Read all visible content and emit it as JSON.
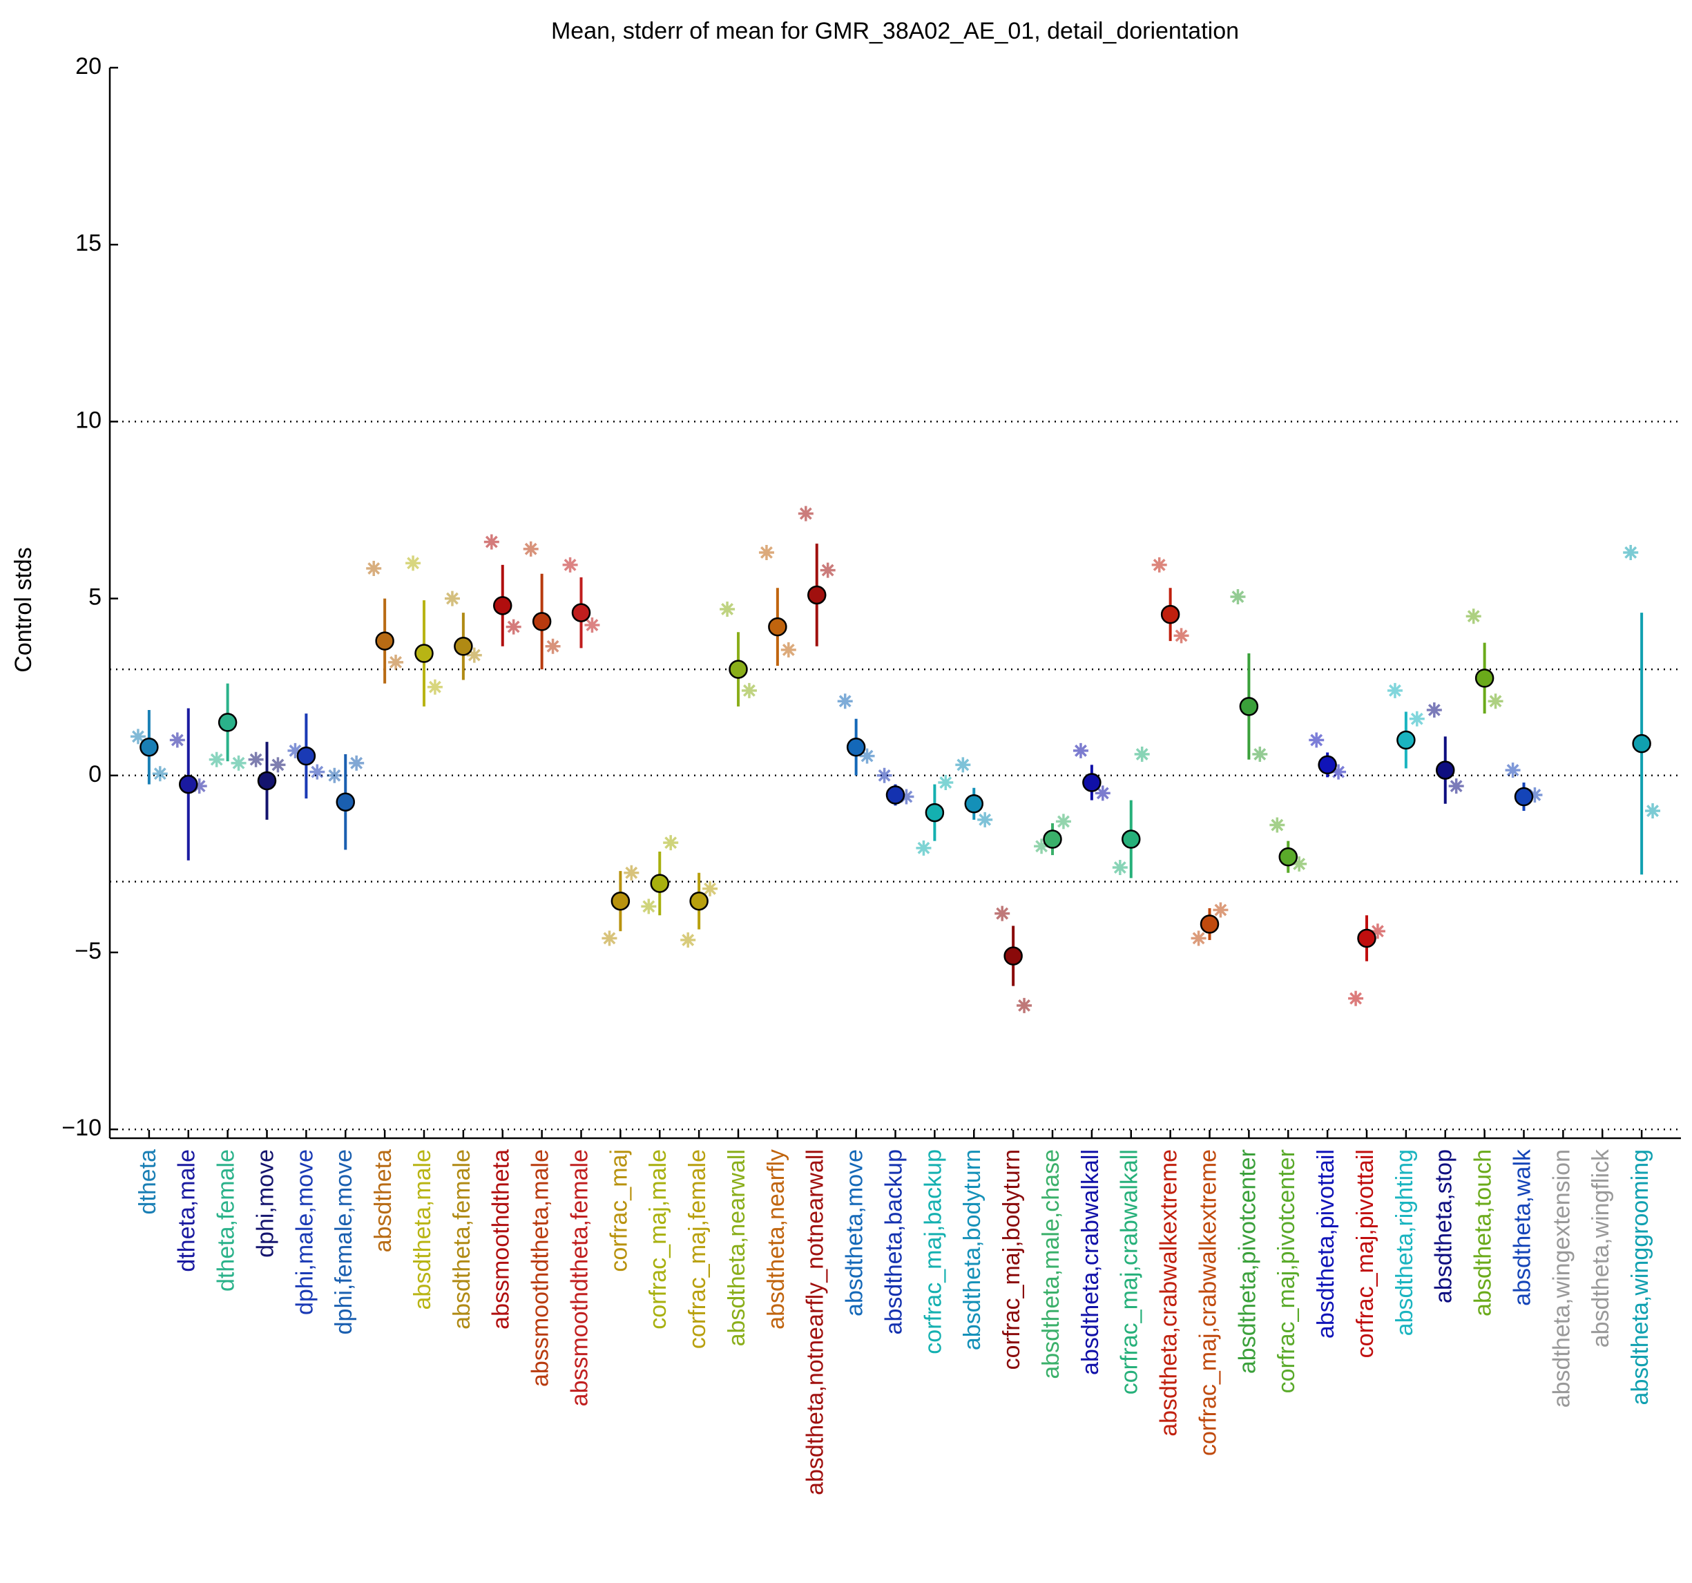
{
  "chart_data": {
    "type": "errorbar",
    "title": "Mean, stderr of mean for GMR_38A02_AE_01, detail_dorientation",
    "ylabel": "Control stds",
    "categories": [
      "dtheta",
      "dtheta,male",
      "dtheta,female",
      "dphi,move",
      "dphi,male,move",
      "dphi,female,move",
      "absdtheta",
      "absdtheta,male",
      "absdtheta,female",
      "abssmoothdtheta",
      "abssmoothdtheta,male",
      "abssmoothdtheta,female",
      "corfrac_maj",
      "corfrac_maj,male",
      "corfrac_maj,female",
      "absdtheta,nearwall",
      "absdtheta,nearfly",
      "absdtheta,notnearfly_notnearwall",
      "absdtheta,move",
      "absdtheta,backup",
      "corfrac_maj,backup",
      "absdtheta,bodyturn",
      "corfrac_maj,bodyturn",
      "absdtheta,male,chase",
      "absdtheta,crabwalkall",
      "corfrac_maj,crabwalkall",
      "absdtheta,crabwalkextreme",
      "corfrac_maj,crabwalkextreme",
      "absdtheta,pivotcenter",
      "corfrac_maj,pivotcenter",
      "absdtheta,pivottail",
      "corfrac_maj,pivottail",
      "absdtheta,righting",
      "absdtheta,stop",
      "absdtheta,touch",
      "absdtheta,walk",
      "absdtheta,wingextension",
      "absdtheta,wingflick",
      "absdtheta,winggrooming"
    ],
    "colors": [
      "#1a7fb5",
      "#1a1aa0",
      "#2ab28a",
      "#14146e",
      "#1a3ab5",
      "#1a5fb0",
      "#b86b14",
      "#b8b414",
      "#b08a14",
      "#b00e0e",
      "#b83a0e",
      "#c01e1e",
      "#b8920e",
      "#a8b00e",
      "#b8a00e",
      "#8aae1a",
      "#c0640e",
      "#a0100e",
      "#1468b8",
      "#1432b0",
      "#14b0b0",
      "#1490b8",
      "#8a0a0a",
      "#3ab06a",
      "#1010a8",
      "#26b07a",
      "#c0200e",
      "#c04a0e",
      "#3aa03a",
      "#5aaa2a",
      "#1014b8",
      "#c00e0e",
      "#1ab4c0",
      "#0e0e80",
      "#6aaa1a",
      "#1444b8",
      "#999999",
      "#999999",
      "#10a0b0"
    ],
    "values": [
      0.8,
      -0.25,
      1.5,
      -0.15,
      0.55,
      -0.75,
      3.8,
      3.45,
      3.65,
      4.8,
      4.35,
      4.6,
      -3.55,
      -3.05,
      -3.55,
      3.0,
      4.2,
      5.1,
      0.8,
      -0.55,
      -1.05,
      -0.8,
      -5.1,
      -1.8,
      -0.2,
      -1.8,
      4.55,
      -4.2,
      1.95,
      -2.3,
      0.3,
      -4.6,
      1.0,
      0.15,
      2.75,
      -0.6,
      null,
      null,
      0.9
    ],
    "errors": [
      1.05,
      2.15,
      1.1,
      1.1,
      1.2,
      1.35,
      1.2,
      1.5,
      0.95,
      1.15,
      1.35,
      1.0,
      0.85,
      0.9,
      0.8,
      1.05,
      1.1,
      1.45,
      0.8,
      0.3,
      0.8,
      0.45,
      0.85,
      0.45,
      0.5,
      1.1,
      0.75,
      0.45,
      1.5,
      0.45,
      0.35,
      0.65,
      0.8,
      0.95,
      1.0,
      0.4,
      null,
      null,
      3.7
    ],
    "stars_left": [
      1.1,
      1.0,
      0.45,
      0.45,
      0.7,
      0.0,
      5.85,
      6.0,
      5.0,
      6.6,
      6.4,
      5.95,
      -4.6,
      -3.7,
      -4.65,
      4.7,
      6.3,
      7.4,
      2.1,
      0.0,
      -2.05,
      0.3,
      -3.9,
      -2.0,
      0.7,
      -2.6,
      5.95,
      -4.6,
      5.05,
      -1.4,
      1.0,
      -6.3,
      2.4,
      1.85,
      4.5,
      0.15,
      null,
      null,
      6.3
    ],
    "stars_right": [
      0.05,
      -0.3,
      0.35,
      0.3,
      0.1,
      0.35,
      3.2,
      2.5,
      3.4,
      4.2,
      3.65,
      4.25,
      -2.75,
      -1.9,
      -3.2,
      2.4,
      3.55,
      5.8,
      0.55,
      -0.6,
      -0.2,
      -1.25,
      -6.5,
      -1.3,
      -0.5,
      0.6,
      3.95,
      -3.8,
      0.6,
      -2.5,
      0.1,
      -4.4,
      1.6,
      -0.3,
      2.1,
      -0.55,
      null,
      null,
      -1.0
    ],
    "xlim": [
      0,
      40
    ],
    "ylim": [
      -10.25,
      20
    ],
    "yticks": [
      {
        "value": -10,
        "label": "−10"
      },
      {
        "value": -5,
        "label": "−5"
      },
      0,
      5,
      10,
      15,
      20
    ],
    "reference_lines": [
      -10,
      -3,
      0,
      3,
      10
    ]
  }
}
